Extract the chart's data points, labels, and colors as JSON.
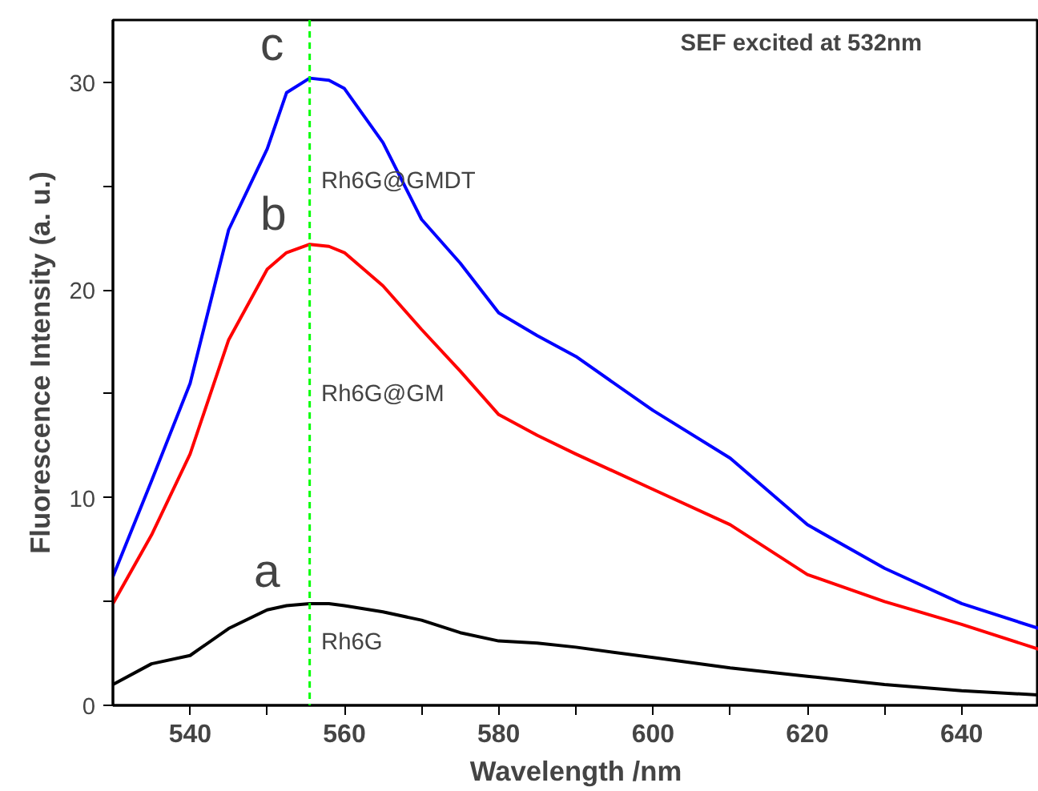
{
  "chart_data": {
    "type": "line",
    "xlabel": "Wavelength /nm",
    "ylabel": "Fluorescence Intensity (a. u.)",
    "x": [
      530,
      535,
      540,
      545,
      550,
      552.5,
      555.5,
      558,
      560,
      565,
      570,
      575,
      580,
      585,
      590,
      600,
      610,
      620,
      630,
      640,
      650
    ],
    "series": [
      {
        "name": "Rh6G",
        "color": "#000000",
        "values": [
          1.0,
          2.0,
          2.4,
          3.7,
          4.6,
          4.8,
          4.9,
          4.9,
          4.8,
          4.5,
          4.1,
          3.5,
          3.1,
          3.0,
          2.8,
          2.3,
          1.8,
          1.4,
          1.0,
          0.7,
          0.5
        ]
      },
      {
        "name": "Rh6G@GM",
        "color": "#ff0000",
        "values": [
          4.9,
          8.2,
          12.1,
          17.6,
          21.0,
          21.8,
          22.2,
          22.1,
          21.8,
          20.2,
          18.1,
          16.1,
          14.0,
          13.0,
          12.1,
          10.4,
          8.7,
          6.3,
          5.0,
          3.9,
          2.7
        ]
      },
      {
        "name": "Rh6G@GMDT",
        "color": "#0000ff",
        "values": [
          6.2,
          10.8,
          15.5,
          22.9,
          26.8,
          29.5,
          30.2,
          30.1,
          29.7,
          27.1,
          23.4,
          21.3,
          18.9,
          17.8,
          16.8,
          14.2,
          11.9,
          8.7,
          6.6,
          4.9,
          3.7
        ]
      }
    ],
    "xlim": [
      530,
      650
    ],
    "ylim": [
      0,
      33
    ],
    "xticks": [
      540,
      {
        "value": 550,
        "label": null
      },
      560,
      {
        "value": 570,
        "label": null
      },
      580,
      {
        "value": 590,
        "label": null
      },
      600,
      {
        "value": 610,
        "label": null
      },
      620,
      {
        "value": 630,
        "label": null
      },
      640
    ],
    "yticks": [
      0,
      {
        "value": 5,
        "label": null
      },
      10,
      {
        "value": 15,
        "label": null
      },
      20,
      {
        "value": 25,
        "label": null
      },
      30
    ],
    "ref_lines": [
      {
        "axis": "x",
        "value": 555.5,
        "color": "#00ff00",
        "line_style": "dashed"
      }
    ],
    "annotations": [
      "SEF excited at 532nm",
      "c",
      "b",
      "a"
    ],
    "grid": false,
    "marker": "none",
    "line_style": "solid"
  }
}
